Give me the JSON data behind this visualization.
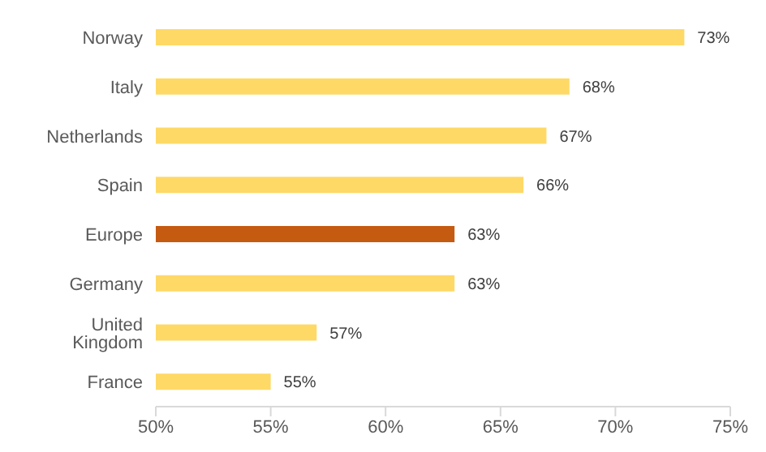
{
  "chart_data": {
    "type": "bar",
    "orientation": "horizontal",
    "categories": [
      "Norway",
      "Italy",
      "Netherlands",
      "Spain",
      "Europe",
      "Germany",
      "United Kingdom",
      "France"
    ],
    "values": [
      73,
      68,
      67,
      66,
      63,
      63,
      57,
      55
    ],
    "colors": [
      "#ffd966",
      "#ffd966",
      "#ffd966",
      "#ffd966",
      "#c55a11",
      "#ffd966",
      "#ffd966",
      "#ffd966"
    ],
    "value_labels": [
      "73%",
      "68%",
      "67%",
      "66%",
      "63%",
      "63%",
      "57%",
      "55%"
    ],
    "xlim": [
      50,
      75
    ],
    "xticks": [
      {
        "value": 50,
        "label": "50%"
      },
      {
        "value": 55,
        "label": "55%"
      },
      {
        "value": 60,
        "label": "60%"
      },
      {
        "value": 65,
        "label": "65%"
      },
      {
        "value": 70,
        "label": "70%"
      },
      {
        "value": 75,
        "label": "75%"
      }
    ],
    "grid": false,
    "legend": false
  }
}
